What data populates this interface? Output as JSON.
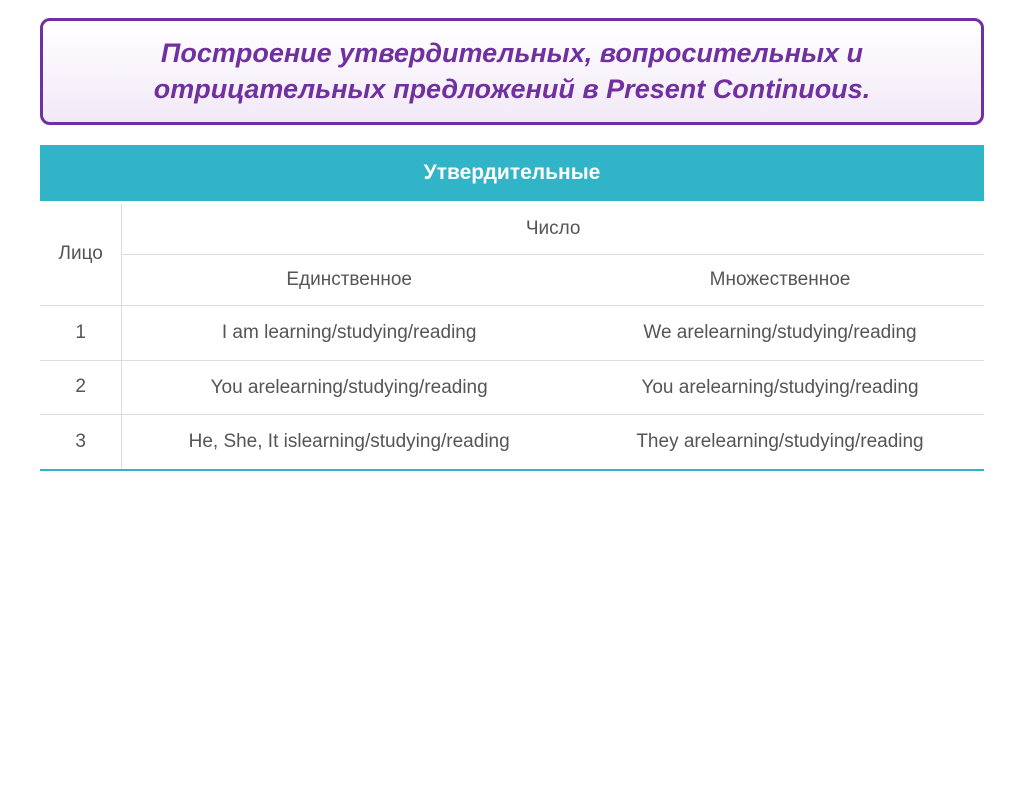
{
  "title": "Построение утвердительных, вопросительных и отрицательных предложений в Present Continuous.",
  "table": {
    "header_main": "Утвердительные",
    "face_label": "Лицо",
    "number_label": "Число",
    "singular_label": "Единственное",
    "plural_label": "Множественное",
    "rows": [
      {
        "person": "1",
        "singular": "I am learning/studying/reading",
        "plural": "We arelearning/studying/reading"
      },
      {
        "person": "2",
        "singular": "You arelearning/studying/reading",
        "plural": "You arelearning/studying/reading"
      },
      {
        "person": "3",
        "singular": "He, She, It islearning/studying/reading",
        "plural": "They arelearning/studying/reading"
      }
    ]
  },
  "colors": {
    "accent": "#31b4c8",
    "title_border": "#7030a0",
    "title_text": "#7030a0",
    "grid": "#dcdcdc",
    "body_text": "#555555"
  }
}
